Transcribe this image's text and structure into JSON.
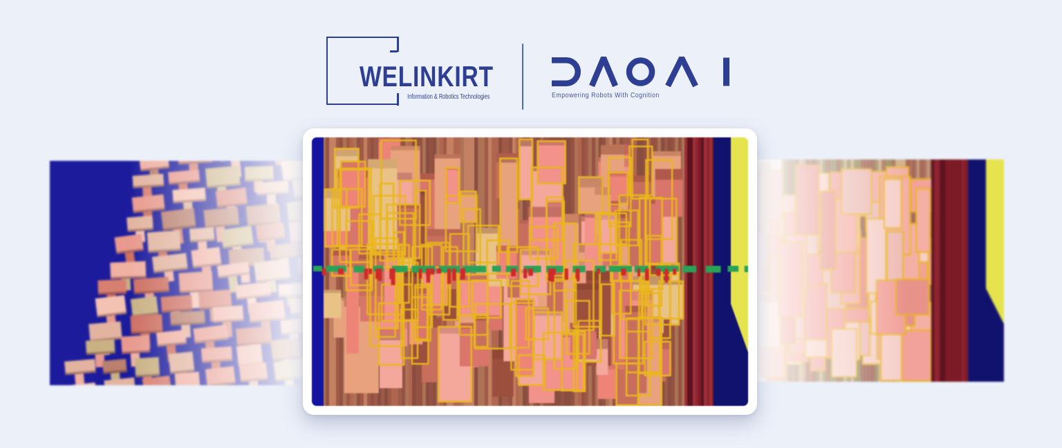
{
  "page": {
    "background": "#ecf0f9"
  },
  "header": {
    "welinkirt": {
      "name": "WELINKIRT",
      "tagline": "Information & Robotics Technologies"
    },
    "daoai": {
      "name": "DAOAI",
      "tagline": "Empowering Robots With Cognition"
    },
    "brand_blue": "#2e3e92",
    "divider_color": "#5068b0",
    "tagline_blue": "#44549e"
  },
  "carousel": {
    "seed": 7,
    "slides": [
      {
        "id": "prev",
        "alt": "Faded 3D point cloud of a stacked lumber pile on a dark blue background"
      },
      {
        "id": "current",
        "alt": "Machine vision detection view of a lumber stack with yellow bounding boxes, a green horizontal scan line and red tick marks"
      },
      {
        "id": "next",
        "alt": "Faded machine vision detection view of a lumber stack with yellow bounding boxes"
      }
    ],
    "palette": {
      "backdrop_streaks": [
        "#a05a40",
        "#8a4a38",
        "#b97a5a",
        "#7c4030",
        "#9c6a4a",
        "#6e3a2c"
      ],
      "box_fills": [
        "#f2928a",
        "#ee8478",
        "#f4a89c",
        "#e9c286",
        "#c76f5c",
        "#9c4f3d",
        "#e8a37e",
        "#d9756a"
      ],
      "box_stroke": "#eab71e",
      "scan_line": "#2aa257",
      "tick_red": "#cf2a2a",
      "blue_band": "#1414a0",
      "navy_band": "#10126e",
      "yellow_band": "#e6e44e",
      "red_streaks": [
        "#7c1a26",
        "#8e2430",
        "#5e1420",
        "#9c3038"
      ],
      "left_bg": "#1b1b9c",
      "left_fills": [
        "#e89a8e",
        "#d87f72",
        "#ce6f62",
        "#f0b0a2",
        "#c9b184",
        "#b9806e",
        "#e2b49f",
        "#f4c2b2"
      ],
      "right_pale_fills": [
        "#f2a29a",
        "#eebdb6",
        "#f4b0a4",
        "#e8938a",
        "#f6cfc8"
      ],
      "right_streaks": [
        "#c9a87c",
        "#8a7a4a",
        "#a05a48",
        "#b98a6a",
        "#96503e"
      ]
    }
  }
}
